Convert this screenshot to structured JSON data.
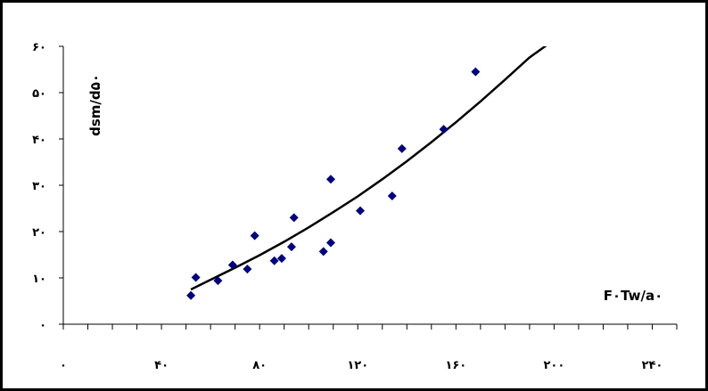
{
  "chart_data": {
    "type": "scatter",
    "x_ticks": [
      "۰",
      "۴۰",
      "۸۰",
      "۱۲۰",
      "۱۶۰",
      "۲۰۰",
      "۲۴۰"
    ],
    "x_tick_values": [
      0,
      40,
      80,
      120,
      160,
      200,
      240
    ],
    "y_ticks": [
      "۰",
      "۱۰",
      "۲۰",
      "۳۰",
      "۴۰",
      "۵۰",
      "۶۰"
    ],
    "y_tick_values": [
      0,
      10,
      20,
      30,
      40,
      50,
      60
    ],
    "xlim": [
      0,
      250
    ],
    "ylim": [
      0,
      60
    ],
    "xlabel": "F۰Tw/a۰",
    "ylabel": "dsm/d۵۰",
    "grid": false,
    "series": [
      {
        "marker": "diamond",
        "color": "#000080",
        "points": [
          {
            "x": 52,
            "y": 6.2
          },
          {
            "x": 54,
            "y": 10.1
          },
          {
            "x": 63,
            "y": 9.4
          },
          {
            "x": 69,
            "y": 12.8
          },
          {
            "x": 75,
            "y": 11.9
          },
          {
            "x": 78,
            "y": 19.1
          },
          {
            "x": 86,
            "y": 13.7
          },
          {
            "x": 89,
            "y": 14.2
          },
          {
            "x": 93,
            "y": 16.7
          },
          {
            "x": 94,
            "y": 23.0
          },
          {
            "x": 106,
            "y": 15.7
          },
          {
            "x": 109,
            "y": 17.6
          },
          {
            "x": 109,
            "y": 31.3
          },
          {
            "x": 121,
            "y": 24.5
          },
          {
            "x": 134,
            "y": 27.7
          },
          {
            "x": 138,
            "y": 37.9
          },
          {
            "x": 155,
            "y": 42.1
          },
          {
            "x": 168,
            "y": 54.5
          }
        ]
      },
      {
        "type": "trendline",
        "color": "#000000",
        "points": [
          {
            "x": 52,
            "y": 7.5
          },
          {
            "x": 60,
            "y": 9.6
          },
          {
            "x": 70,
            "y": 12.2
          },
          {
            "x": 80,
            "y": 14.9
          },
          {
            "x": 90,
            "y": 17.8
          },
          {
            "x": 100,
            "y": 20.9
          },
          {
            "x": 110,
            "y": 24.2
          },
          {
            "x": 120,
            "y": 27.6
          },
          {
            "x": 130,
            "y": 31.3
          },
          {
            "x": 140,
            "y": 35.2
          },
          {
            "x": 150,
            "y": 39.3
          },
          {
            "x": 160,
            "y": 43.6
          },
          {
            "x": 170,
            "y": 48.1
          },
          {
            "x": 180,
            "y": 52.8
          },
          {
            "x": 190,
            "y": 57.6
          },
          {
            "x": 199,
            "y": 61.0
          }
        ]
      }
    ]
  }
}
